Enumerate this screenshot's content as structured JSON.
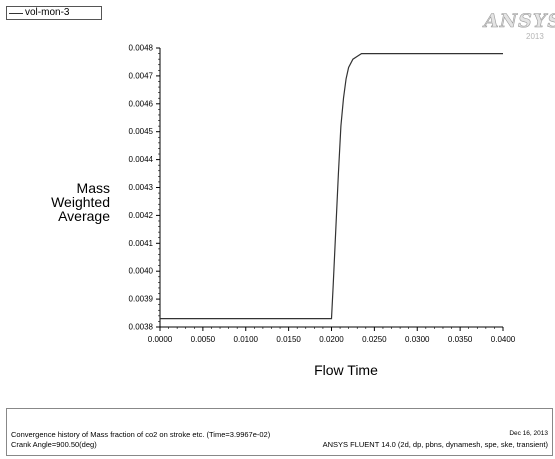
{
  "legend": {
    "label": "vol-mon-3"
  },
  "logo": {
    "text": "ANSYS",
    "sub": "2013"
  },
  "chart_data": {
    "type": "line",
    "title": "",
    "xlabel": "Flow Time",
    "ylabel": [
      "Mass",
      "Weighted",
      "Average"
    ],
    "xlim": [
      0.0,
      0.04
    ],
    "ylim": [
      0.0038,
      0.0048
    ],
    "x_ticks": [
      "0.0000",
      "0.0050",
      "0.0100",
      "0.0150",
      "0.0200",
      "0.0250",
      "0.0300",
      "0.0350",
      "0.0400"
    ],
    "y_ticks": [
      "0.0038",
      "0.0039",
      "0.0040",
      "0.0041",
      "0.0042",
      "0.0043",
      "0.0044",
      "0.0045",
      "0.0046",
      "0.0047",
      "0.0048"
    ],
    "grid": false,
    "legend_position": "top-left",
    "line_color": "#333333",
    "series": [
      {
        "name": "vol-mon-3",
        "x": [
          0.0,
          0.005,
          0.01,
          0.015,
          0.0195,
          0.02,
          0.0202,
          0.0205,
          0.0208,
          0.0211,
          0.0214,
          0.0217,
          0.022,
          0.0225,
          0.023,
          0.0235,
          0.024,
          0.025,
          0.03,
          0.035,
          0.04
        ],
        "y": [
          0.00383,
          0.00383,
          0.00383,
          0.00383,
          0.00383,
          0.00383,
          0.00395,
          0.00415,
          0.00435,
          0.00452,
          0.00462,
          0.00469,
          0.00473,
          0.00476,
          0.00477,
          0.00478,
          0.00478,
          0.00478,
          0.00478,
          0.00478,
          0.00478
        ]
      }
    ]
  },
  "footer": {
    "description": "Convergence history of Mass fraction of co2 on stroke etc.  (Time=3.9967e-02)",
    "crank_angle": "Crank Angle=900.50(deg)",
    "date": "Dec 16, 2013",
    "solver": "ANSYS FLUENT 14.0 (2d, dp, pbns, dynamesh, spe, ske, transient)"
  }
}
